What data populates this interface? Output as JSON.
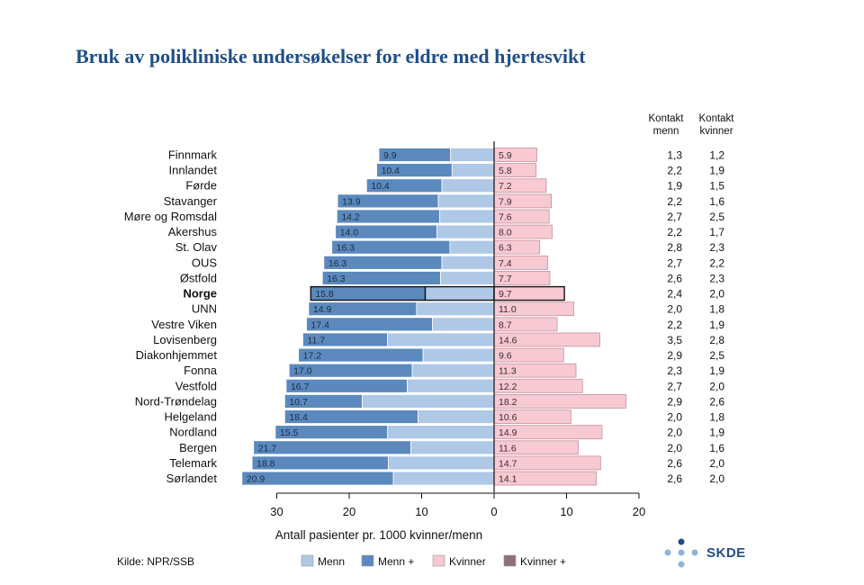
{
  "title": "Bruk av polikliniske undersøkelser for eldre med hjertesvikt",
  "source": "Kilde: NPR/SSB",
  "logo": {
    "text": "SKDE"
  },
  "colors": {
    "menn": "#aec8e6",
    "menn_plus": "#5b89bd",
    "kvinner": "#f7c9d2",
    "kvinner_plus": "#8e7278",
    "title": "#1f4f8a"
  },
  "chart_data": {
    "type": "bar",
    "orientation": "horizontal-diverging",
    "xlabel": "Antall pasienter pr. 1000 kvinner/menn",
    "x_ticks": [
      "30",
      "20",
      "10",
      "0",
      "10",
      "20"
    ],
    "highlighted_category": "Norge",
    "categories": [
      "Finnmark",
      "Innlandet",
      "Førde",
      "Stavanger",
      "Møre og Romsdal",
      "Akershus",
      "St. Olav",
      "OUS",
      "Østfold",
      "Norge",
      "UNN",
      "Vestre Viken",
      "Lovisenberg",
      "Diakonhjemmet",
      "Fonna",
      "Vestfold",
      "Nord-Trøndelag",
      "Helgeland",
      "Nordland",
      "Bergen",
      "Telemark",
      "Sørlandet"
    ],
    "series": [
      {
        "name": "Menn",
        "side": "left",
        "color": "#aec8e6",
        "values": [
          6.0,
          5.8,
          7.2,
          7.7,
          7.5,
          7.9,
          6.1,
          7.2,
          7.4,
          9.5,
          10.7,
          8.5,
          14.7,
          9.8,
          11.3,
          12.0,
          18.2,
          10.5,
          14.7,
          11.5,
          14.6,
          13.9
        ]
      },
      {
        "name": "Menn +",
        "side": "left",
        "color": "#5b89bd",
        "values": [
          9.9,
          10.4,
          10.4,
          13.9,
          14.2,
          14.0,
          16.3,
          16.3,
          16.3,
          15.8,
          14.9,
          17.4,
          11.7,
          17.2,
          17.0,
          16.7,
          10.7,
          18.4,
          15.5,
          21.7,
          18.8,
          20.9
        ]
      },
      {
        "name": "Kvinner",
        "side": "right",
        "color": "#f7c9d2",
        "values": [
          5.9,
          5.8,
          7.2,
          7.9,
          7.6,
          8.0,
          6.3,
          7.4,
          7.7,
          9.7,
          11.0,
          8.7,
          14.6,
          9.6,
          11.3,
          12.2,
          18.2,
          10.6,
          14.9,
          11.6,
          14.7,
          14.1
        ]
      },
      {
        "name": "Kvinner +",
        "side": "right",
        "color": "#8e7278",
        "values": [
          0,
          0,
          0,
          0,
          0,
          0,
          0,
          0,
          0,
          0,
          0,
          0,
          0,
          0,
          0,
          0,
          0,
          0,
          0,
          0,
          0,
          0
        ]
      }
    ],
    "bar_labels": {
      "menn_plus": [
        "9.9",
        "10.4",
        "10.4",
        "13.9",
        "14.2",
        "14.0",
        "16.3",
        "16.3",
        "16.3",
        "15.8",
        "14.9",
        "17.4",
        "11.7",
        "17.2",
        "17.0",
        "16.7",
        "10.7",
        "18.4",
        "15.5",
        "21.7",
        "18.8",
        "20.9"
      ],
      "kvinner": [
        "5.9",
        "5.8",
        "7.2",
        "7.9",
        "7.6",
        "8.0",
        "6.3",
        "7.4",
        "7.7",
        "9.7",
        "11.0",
        "8.7",
        "14.6",
        "9.6",
        "11.3",
        "12.2",
        "18.2",
        "10.6",
        "14.9",
        "11.6",
        "14.7",
        "14.1"
      ]
    },
    "table": {
      "headers": [
        [
          "Kontakt",
          "menn"
        ],
        [
          "Kontakt",
          "kvinner"
        ]
      ],
      "kontakt_menn": [
        "1,3",
        "2,2",
        "1,9",
        "2,2",
        "2,7",
        "2,2",
        "2,8",
        "2,7",
        "2,6",
        "2,4",
        "2,0",
        "2,2",
        "3,5",
        "2,9",
        "2,3",
        "2,7",
        "2,9",
        "2,0",
        "2,0",
        "2,0",
        "2,6",
        "2,6"
      ],
      "kontakt_kvinner": [
        "1,2",
        "1,9",
        "1,5",
        "1,6",
        "2,5",
        "1,7",
        "2,3",
        "2,2",
        "2,3",
        "2,0",
        "1,8",
        "1,9",
        "2,8",
        "2,5",
        "1,9",
        "2,0",
        "2,6",
        "1,8",
        "1,9",
        "1,6",
        "2,0",
        "2,0"
      ]
    },
    "legend": {
      "position": "bottom",
      "entries": [
        "Menn",
        "Menn +",
        "Kvinner",
        "Kvinner +"
      ]
    },
    "grid": false
  }
}
